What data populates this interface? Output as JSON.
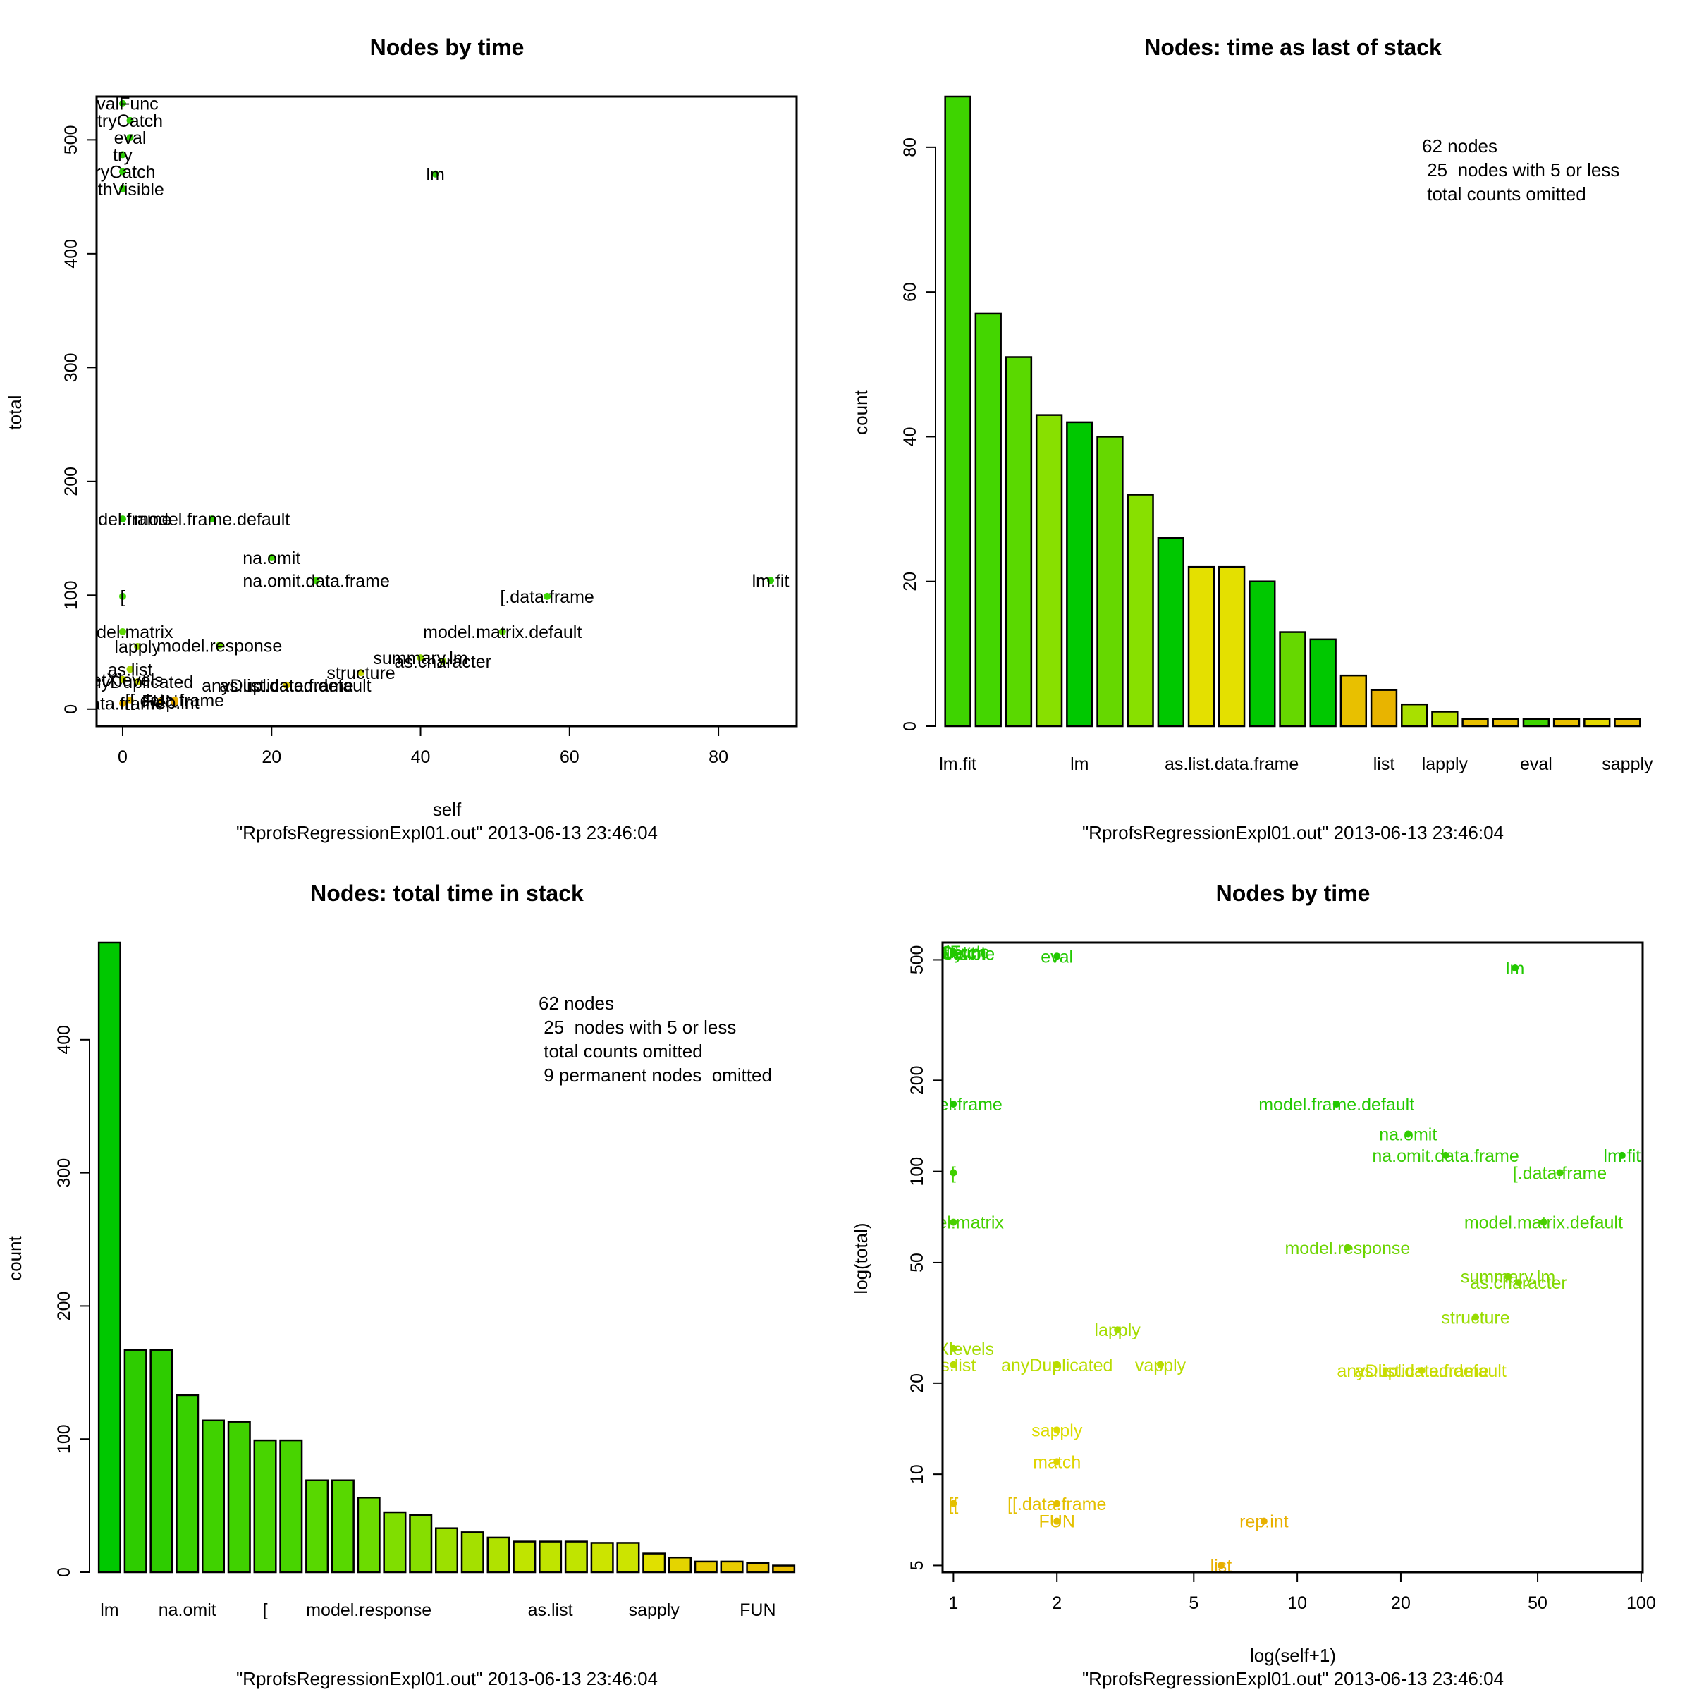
{
  "chart_data": [
    {
      "id": "p1",
      "type": "scatter",
      "title": "Nodes by time",
      "xlabel": "self",
      "ylabel": "total",
      "subtitle": "\"RprofsRegressionExpl01.out\" 2013-06-13 23:46:04",
      "xlim": [
        -3.5,
        90.5
      ],
      "ylim": [
        -15,
        538
      ],
      "xticks": [
        0,
        20,
        40,
        60,
        80
      ],
      "yticks": [
        0,
        100,
        200,
        300,
        400,
        500
      ],
      "points": [
        {
          "label": "evalFunc",
          "x": 0,
          "y": 532,
          "color": "#2ecc06"
        },
        {
          "label": "tryCatch",
          "x": 1,
          "y": 517,
          "color": "#2ecc06"
        },
        {
          "label": "eval",
          "x": 1,
          "y": 502,
          "color": "#2ecc06"
        },
        {
          "label": "try",
          "x": 0,
          "y": 487,
          "color": "#2ecc06"
        },
        {
          "label": "tryCatch",
          "x": 0,
          "y": 472,
          "color": "#2ecc06"
        },
        {
          "label": "withVisible",
          "x": 0,
          "y": 457,
          "color": "#2ecc06"
        },
        {
          "label": "lm",
          "x": 42,
          "y": 470,
          "color": "#2ecc06"
        },
        {
          "label": "model.frame.default",
          "x": 12,
          "y": 167,
          "color": "#2ecc06"
        },
        {
          "label": "model.frame",
          "x": 0,
          "y": 167,
          "color": "#2ecc06"
        },
        {
          "label": "na.omit",
          "x": 20,
          "y": 133,
          "color": "#40d806"
        },
        {
          "label": "na.omit.data.frame",
          "x": 26,
          "y": 113,
          "color": "#40d806"
        },
        {
          "label": "lm.fit",
          "x": 87,
          "y": 113,
          "color": "#2ecc06"
        },
        {
          "label": "[.data.frame",
          "x": 57,
          "y": 99,
          "color": "#40d806"
        },
        {
          "label": "[",
          "x": 0,
          "y": 99,
          "color": "#40d806"
        },
        {
          "label": "model.matrix",
          "x": 0,
          "y": 68,
          "color": "#5ed806"
        },
        {
          "label": "model.matrix.default",
          "x": 51,
          "y": 68,
          "color": "#5ed806"
        },
        {
          "label": "lapply",
          "x": 2,
          "y": 55,
          "color": "#9ad806"
        },
        {
          "label": "model.response",
          "x": 13,
          "y": 56,
          "color": "#6ed806"
        },
        {
          "label": "as.list",
          "x": 1,
          "y": 35,
          "color": "#a8d806"
        },
        {
          "label": "structure",
          "x": 32,
          "y": 32,
          "color": "#c7d806"
        },
        {
          "label": "as.character",
          "x": 43,
          "y": 42,
          "color": "#8ed806"
        },
        {
          "label": "anyDuplicated",
          "x": 2,
          "y": 24,
          "color": "#c9d806"
        },
        {
          "label": "summary.lm",
          "x": 40,
          "y": 45,
          "color": "#8ed806"
        },
        {
          "label": "getXlevels",
          "x": 0,
          "y": 26,
          "color": "#c0d806"
        },
        {
          "label": "anyDuplicated.default",
          "x": 22,
          "y": 21,
          "color": "#d8c806"
        },
        {
          "label": "as.list.data.frame",
          "x": 22,
          "y": 21,
          "color": "#d8c806"
        },
        {
          "label": "[[",
          "x": 1,
          "y": 8,
          "color": "#e8c000"
        },
        {
          "label": "FUN",
          "x": 5,
          "y": 7,
          "color": "#e8b400"
        },
        {
          "label": "[[.data.frame",
          "x": 7,
          "y": 8,
          "color": "#e8b400"
        },
        {
          "label": "data.frame",
          "x": 0,
          "y": 5,
          "color": "#e8b400"
        },
        {
          "label": "rep.int",
          "x": 7,
          "y": 6,
          "color": "#e8a800"
        }
      ]
    },
    {
      "id": "p2",
      "type": "bar",
      "title": "Nodes: time as last of stack",
      "ylabel": "count",
      "subtitle": "\"RprofsRegressionExpl01.out\" 2013-06-13 23:46:04",
      "ylim": [
        0,
        87
      ],
      "yticks": [
        0,
        20,
        40,
        60,
        80
      ],
      "values": [
        87,
        57,
        51,
        43,
        42,
        40,
        32,
        26,
        22,
        22,
        20,
        13,
        12,
        7,
        5,
        3,
        2,
        1,
        1,
        1,
        1,
        1,
        1
      ],
      "colors": [
        "#3ed400",
        "#44d600",
        "#5ad900",
        "#88e000",
        "#00c800",
        "#66d800",
        "#88e000",
        "#00c800",
        "#e4e000",
        "#e4e000",
        "#00c800",
        "#66d800",
        "#00c800",
        "#e8c000",
        "#e8b400",
        "#a8e000",
        "#b8e000",
        "#e8c000",
        "#e8c000",
        "#3ed400",
        "#e8c000",
        "#e4d800",
        "#e8c000"
      ],
      "tick_labels": [
        {
          "index": 0,
          "label": "lm.fit"
        },
        {
          "index": 4,
          "label": "lm"
        },
        {
          "index": 9,
          "label": "as.list.data.frame"
        },
        {
          "index": 14,
          "label": "list"
        },
        {
          "index": 16,
          "label": "lapply"
        },
        {
          "index": 19,
          "label": "eval"
        },
        {
          "index": 22,
          "label": "sapply"
        }
      ],
      "note": [
        "62 nodes",
        " 25  nodes with 5 or less",
        " total counts omitted"
      ]
    },
    {
      "id": "p3",
      "type": "bar",
      "title": "Nodes: total time in stack",
      "ylabel": "count",
      "subtitle": "\"RprofsRegressionExpl01.out\" 2013-06-13 23:46:04",
      "ylim": [
        0,
        473
      ],
      "yticks": [
        0,
        100,
        200,
        300,
        400
      ],
      "values": [
        473,
        167,
        167,
        133,
        114,
        113,
        99,
        99,
        69,
        69,
        56,
        45,
        43,
        33,
        30,
        26,
        23,
        23,
        23,
        22,
        22,
        14,
        11,
        8,
        8,
        7,
        5
      ],
      "colors": [
        "#00c800",
        "#2ecc00",
        "#2ecc00",
        "#38d000",
        "#40d200",
        "#40d200",
        "#48d400",
        "#48d400",
        "#58d800",
        "#58d800",
        "#6cdc00",
        "#80de00",
        "#86de00",
        "#9ce000",
        "#a4e000",
        "#b0e200",
        "#c0e400",
        "#c0e400",
        "#c0e400",
        "#cce400",
        "#cce400",
        "#e0e000",
        "#e4d400",
        "#e8cc00",
        "#e8cc00",
        "#e8c400",
        "#e8bc00"
      ],
      "tick_labels": [
        {
          "index": 0,
          "label": "lm"
        },
        {
          "index": 3,
          "label": "na.omit"
        },
        {
          "index": 6,
          "label": "["
        },
        {
          "index": 10,
          "label": "model.response"
        },
        {
          "index": 17,
          "label": "as.list"
        },
        {
          "index": 21,
          "label": "sapply"
        },
        {
          "index": 25,
          "label": "FUN"
        }
      ],
      "note": [
        "62 nodes",
        " 25  nodes with 5 or less",
        " total counts omitted",
        " 9 permanent nodes  omitted"
      ]
    },
    {
      "id": "p4",
      "type": "scatter",
      "title": "Nodes by time",
      "xlabel": "log(self+1)",
      "ylabel": "log(total)",
      "subtitle": "\"RprofsRegressionExpl01.out\" 2013-06-13 23:46:04",
      "log_scale": "xy",
      "xlim": [
        0.93,
        101
      ],
      "ylim": [
        4.75,
        570
      ],
      "xticks": [
        1,
        2,
        5,
        10,
        20,
        50,
        100
      ],
      "yticks": [
        5,
        10,
        20,
        50,
        100,
        200,
        500
      ],
      "points": [
        {
          "label": "evalFunc",
          "x": 1,
          "y": 532,
          "color": "#22c800"
        },
        {
          "label": "tryCatch",
          "x": 1,
          "y": 530,
          "color": "#22c800"
        },
        {
          "label": "try",
          "x": 1,
          "y": 528,
          "color": "#22c800"
        },
        {
          "label": "tryCatch",
          "x": 1,
          "y": 526,
          "color": "#22c800"
        },
        {
          "label": "withVisible",
          "x": 1,
          "y": 524,
          "color": "#22c800"
        },
        {
          "label": "eval",
          "x": 2,
          "y": 514,
          "color": "#22c800"
        },
        {
          "label": "lm",
          "x": 43,
          "y": 470,
          "color": "#22c800"
        },
        {
          "label": "model.frame",
          "x": 1,
          "y": 167,
          "color": "#22c800"
        },
        {
          "label": "model.frame.default",
          "x": 13,
          "y": 167,
          "color": "#22c800"
        },
        {
          "label": "na.omit",
          "x": 21,
          "y": 133,
          "color": "#30cc00"
        },
        {
          "label": "na.omit.data.frame",
          "x": 27,
          "y": 113,
          "color": "#36cc00"
        },
        {
          "label": "lm.fit",
          "x": 88,
          "y": 113,
          "color": "#22c800"
        },
        {
          "label": "[.data.frame",
          "x": 58,
          "y": 99,
          "color": "#40d000"
        },
        {
          "label": "[",
          "x": 1,
          "y": 99,
          "color": "#40d000"
        },
        {
          "label": "model.matrix",
          "x": 1,
          "y": 68,
          "color": "#48d000"
        },
        {
          "label": "model.matrix.default",
          "x": 52,
          "y": 68,
          "color": "#48d000"
        },
        {
          "label": "model.response",
          "x": 14,
          "y": 56,
          "color": "#6cd400"
        },
        {
          "label": "summary.lm",
          "x": 41,
          "y": 45,
          "color": "#80d800"
        },
        {
          "label": "as.character",
          "x": 44,
          "y": 43,
          "color": "#80d800"
        },
        {
          "label": "structure",
          "x": 33,
          "y": 33,
          "color": "#98dc00"
        },
        {
          "label": "lapply",
          "x": 3,
          "y": 30,
          "color": "#a4dc00"
        },
        {
          "label": "getXlevels",
          "x": 1,
          "y": 26,
          "color": "#a4dc00"
        },
        {
          "label": "as.list",
          "x": 1,
          "y": 23,
          "color": "#b8dc00"
        },
        {
          "label": "anyDuplicated",
          "x": 2,
          "y": 23,
          "color": "#b8dc00"
        },
        {
          "label": "vapply",
          "x": 4,
          "y": 23,
          "color": "#b8dc00"
        },
        {
          "label": "anyDuplicated.default",
          "x": 23,
          "y": 22,
          "color": "#c8dc00"
        },
        {
          "label": "as.list.data.frame",
          "x": 23,
          "y": 22,
          "color": "#c8dc00"
        },
        {
          "label": "sapply",
          "x": 2,
          "y": 14,
          "color": "#dcdc00"
        },
        {
          "label": "match",
          "x": 2,
          "y": 11,
          "color": "#e0d400"
        },
        {
          "label": "[[",
          "x": 1,
          "y": 8,
          "color": "#e4c000"
        },
        {
          "label": "[[.data.frame",
          "x": 2,
          "y": 8,
          "color": "#e4c000"
        },
        {
          "label": "FUN",
          "x": 2,
          "y": 7,
          "color": "#e4c000"
        },
        {
          "label": "rep.int",
          "x": 8,
          "y": 7,
          "color": "#e8b000"
        },
        {
          "label": "list",
          "x": 6,
          "y": 5,
          "color": "#e8b000"
        }
      ]
    }
  ]
}
